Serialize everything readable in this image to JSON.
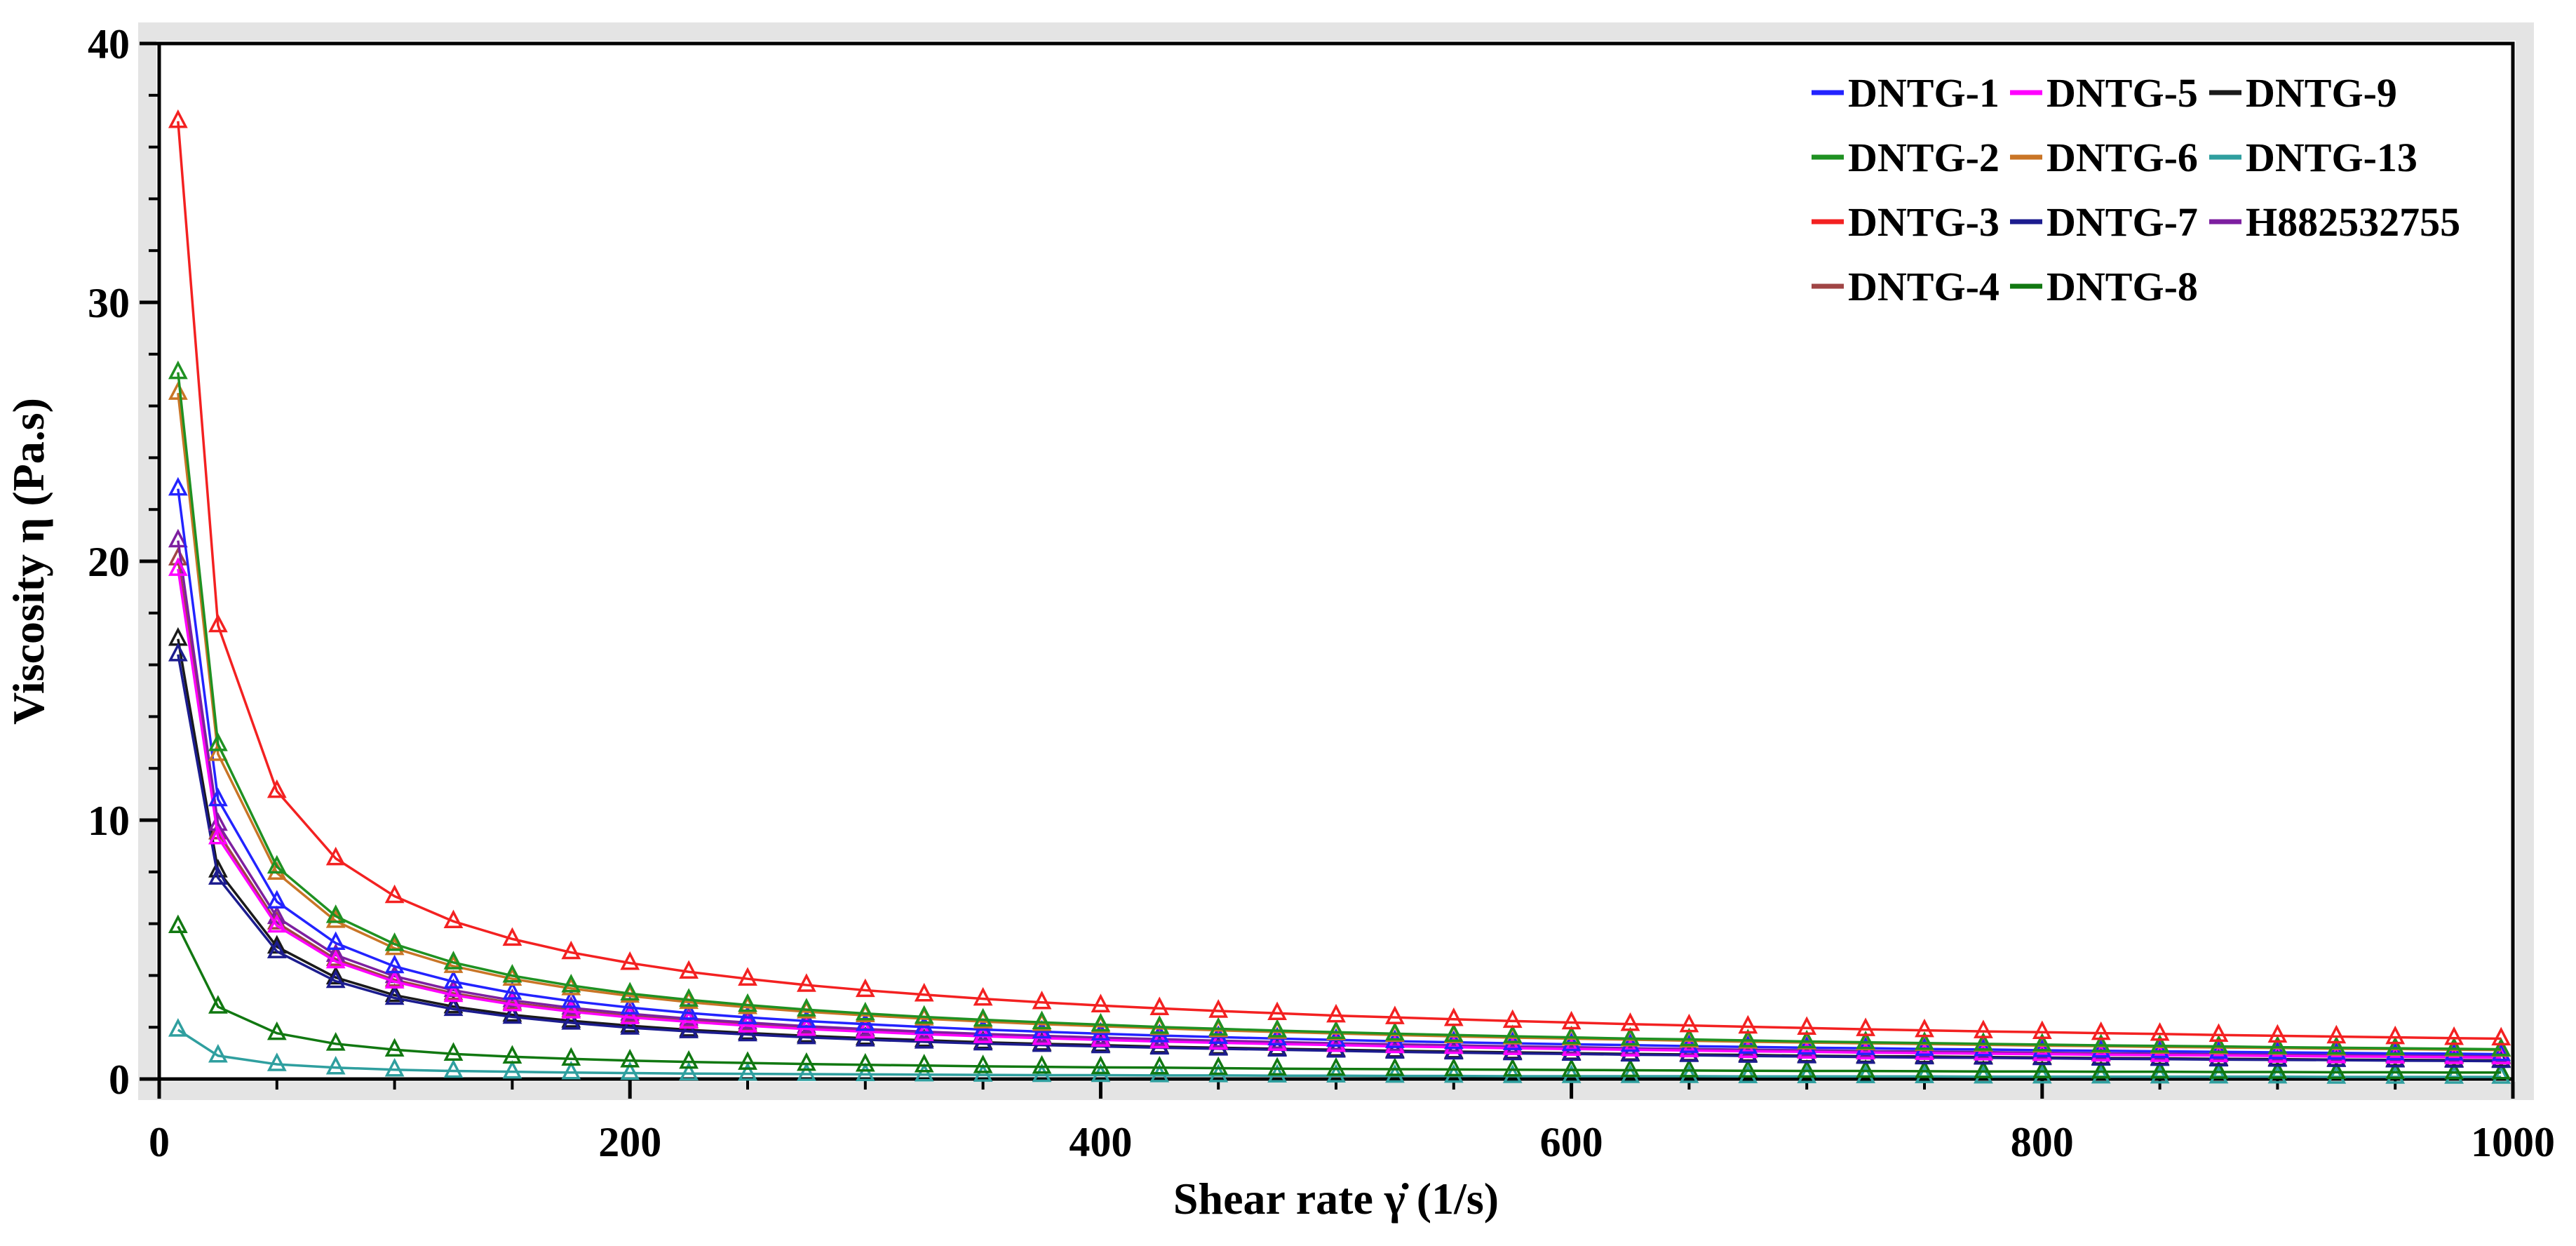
{
  "figure": {
    "background": "#ffffff",
    "frame_color": "#000000",
    "frame_halo_color": "#e4e4e4"
  },
  "chart_data": {
    "type": "line",
    "title": "",
    "xlabel": "Shear rate γ̇  (1/s)",
    "ylabel": "Viscosity η (Pa.s)",
    "xlim": [
      0,
      1000
    ],
    "ylim": [
      0,
      40
    ],
    "x_major_ticks": [
      0,
      200,
      400,
      600,
      800,
      1000
    ],
    "x_minor_tick_step": 50,
    "y_major_ticks": [
      0,
      10,
      20,
      30,
      40
    ],
    "y_minor_tick_step": 2,
    "grid": false,
    "marker": "open-triangle-up",
    "legend": {
      "position": "top-right",
      "columns": [
        [
          "DNTG-1",
          "DNTG-2",
          "DNTG-3",
          "DNTG-4"
        ],
        [
          "DNTG-5",
          "DNTG-6",
          "DNTG-7",
          "DNTG-8"
        ],
        [
          "DNTG-9",
          "DNTG-13",
          "H882532755"
        ]
      ]
    },
    "x": [
      8,
      25,
      50,
      75,
      100,
      125,
      150,
      175,
      200,
      225,
      250,
      275,
      300,
      325,
      350,
      375,
      400,
      425,
      450,
      475,
      500,
      525,
      550,
      575,
      600,
      625,
      650,
      675,
      700,
      725,
      750,
      775,
      800,
      825,
      850,
      875,
      900,
      925,
      950,
      975,
      995
    ],
    "series": [
      {
        "name": "DNTG-13",
        "color": "#2f9f9f",
        "values": [
          1.9,
          0.9,
          0.57,
          0.44,
          0.36,
          0.31,
          0.28,
          0.25,
          0.23,
          0.21,
          0.2,
          0.19,
          0.18,
          0.17,
          0.16,
          0.15,
          0.15,
          0.14,
          0.14,
          0.13,
          0.13,
          0.12,
          0.12,
          0.11,
          0.11,
          0.11,
          0.11,
          0.1,
          0.1,
          0.1,
          0.1,
          0.09,
          0.09,
          0.09,
          0.09,
          0.09,
          0.09,
          0.08,
          0.08,
          0.08,
          0.08
        ]
      },
      {
        "name": "DNTG-8",
        "color": "#117811",
        "values": [
          5.9,
          2.79,
          1.77,
          1.36,
          1.13,
          0.97,
          0.86,
          0.78,
          0.71,
          0.66,
          0.62,
          0.58,
          0.55,
          0.52,
          0.49,
          0.47,
          0.45,
          0.44,
          0.42,
          0.4,
          0.39,
          0.38,
          0.37,
          0.36,
          0.35,
          0.34,
          0.33,
          0.32,
          0.31,
          0.31,
          0.3,
          0.29,
          0.29,
          0.28,
          0.28,
          0.27,
          0.27,
          0.26,
          0.26,
          0.25,
          0.25
        ]
      },
      {
        "name": "DNTG-9",
        "color": "#1a1a1a",
        "values": [
          17,
          8.05,
          5.11,
          3.92,
          3.24,
          2.8,
          2.48,
          2.25,
          2.06,
          1.9,
          1.78,
          1.67,
          1.58,
          1.5,
          1.42,
          1.36,
          1.31,
          1.25,
          1.21,
          1.17,
          1.13,
          1.09,
          1.06,
          1.03,
          1,
          0.97,
          0.95,
          0.93,
          0.9,
          0.88,
          0.87,
          0.85,
          0.83,
          0.81,
          0.8,
          0.78,
          0.77,
          0.75,
          0.74,
          0.73,
          0.72
        ]
      },
      {
        "name": "DNTG-7",
        "color": "#1c1c8f",
        "values": [
          16.4,
          7.77,
          4.93,
          3.78,
          3.13,
          2.7,
          2.4,
          2.17,
          1.98,
          1.84,
          1.72,
          1.61,
          1.52,
          1.44,
          1.37,
          1.31,
          1.26,
          1.21,
          1.17,
          1.13,
          1.09,
          1.05,
          1.02,
          0.99,
          0.97,
          0.94,
          0.92,
          0.89,
          0.87,
          0.85,
          0.83,
          0.82,
          0.8,
          0.78,
          0.77,
          0.75,
          0.74,
          0.73,
          0.71,
          0.7,
          0.69
        ]
      },
      {
        "name": "DNTG-4",
        "color": "#a04545",
        "values": [
          20.1,
          9.52,
          6.04,
          4.63,
          3.83,
          3.31,
          2.94,
          2.66,
          2.43,
          2.25,
          2.1,
          1.97,
          1.87,
          1.77,
          1.68,
          1.61,
          1.54,
          1.48,
          1.43,
          1.38,
          1.33,
          1.29,
          1.25,
          1.22,
          1.18,
          1.15,
          1.12,
          1.1,
          1.07,
          1.05,
          1.02,
          1,
          0.98,
          0.96,
          0.94,
          0.92,
          0.91,
          0.89,
          0.88,
          0.86,
          0.85
        ]
      },
      {
        "name": "H882532755",
        "color": "#7d1fa0",
        "values": [
          20.8,
          9.85,
          6.25,
          4.79,
          3.97,
          3.43,
          3.04,
          2.75,
          2.52,
          2.33,
          2.18,
          2.04,
          1.93,
          1.83,
          1.74,
          1.67,
          1.6,
          1.54,
          1.48,
          1.43,
          1.38,
          1.34,
          1.3,
          1.26,
          1.23,
          1.19,
          1.16,
          1.13,
          1.11,
          1.08,
          1.06,
          1.04,
          1.01,
          0.99,
          0.98,
          0.96,
          0.94,
          0.92,
          0.91,
          0.89,
          0.88
        ]
      },
      {
        "name": "DNTG-5",
        "color": "#ff00ff",
        "values": [
          19.7,
          9.33,
          5.92,
          4.54,
          3.76,
          3.24,
          2.88,
          2.6,
          2.38,
          2.21,
          2.06,
          1.93,
          1.83,
          1.73,
          1.65,
          1.58,
          1.51,
          1.45,
          1.4,
          1.35,
          1.31,
          1.26,
          1.23,
          1.19,
          1.16,
          1.13,
          1.1,
          1.07,
          1.05,
          1.02,
          1,
          0.98,
          0.96,
          0.94,
          0.92,
          0.91,
          0.89,
          0.87,
          0.86,
          0.84,
          0.83
        ]
      },
      {
        "name": "DNTG-1",
        "color": "#2323ff",
        "values": [
          22.8,
          10.8,
          6.85,
          5.25,
          4.35,
          3.76,
          3.33,
          3.01,
          2.76,
          2.55,
          2.38,
          2.24,
          2.12,
          2.01,
          1.91,
          1.83,
          1.75,
          1.68,
          1.62,
          1.56,
          1.51,
          1.46,
          1.42,
          1.38,
          1.34,
          1.31,
          1.27,
          1.24,
          1.21,
          1.19,
          1.16,
          1.14,
          1.11,
          1.09,
          1.07,
          1.05,
          1.03,
          1.01,
          0.99,
          0.98,
          0.96
        ]
      },
      {
        "name": "DNTG-6",
        "color": "#c97526",
        "values": [
          26.5,
          12.55,
          7.96,
          6.1,
          5.05,
          4.36,
          3.87,
          3.5,
          3.21,
          2.97,
          2.77,
          2.6,
          2.46,
          2.33,
          2.22,
          2.12,
          2.04,
          1.96,
          1.88,
          1.82,
          1.76,
          1.7,
          1.65,
          1.6,
          1.56,
          1.52,
          1.48,
          1.44,
          1.41,
          1.38,
          1.35,
          1.32,
          1.29,
          1.27,
          1.24,
          1.22,
          1.2,
          1.17,
          1.16,
          1.13,
          1.12
        ]
      },
      {
        "name": "DNTG-2",
        "color": "#1f9122",
        "values": [
          27.3,
          12.93,
          8.2,
          6.29,
          5.21,
          4.5,
          3.99,
          3.61,
          3.3,
          3.06,
          2.86,
          2.68,
          2.53,
          2.4,
          2.29,
          2.19,
          2.1,
          2.01,
          1.94,
          1.87,
          1.81,
          1.75,
          1.7,
          1.65,
          1.61,
          1.56,
          1.53,
          1.49,
          1.45,
          1.42,
          1.39,
          1.36,
          1.33,
          1.3,
          1.28,
          1.26,
          1.23,
          1.21,
          1.19,
          1.17,
          1.15
        ]
      },
      {
        "name": "DNTG-3",
        "color": "#f32121",
        "values": [
          37,
          17.52,
          11.12,
          8.52,
          7.06,
          6.09,
          5.41,
          4.89,
          4.48,
          4.14,
          3.87,
          3.63,
          3.43,
          3.26,
          3.1,
          2.96,
          2.84,
          2.73,
          2.63,
          2.54,
          2.45,
          2.38,
          2.31,
          2.24,
          2.18,
          2.12,
          2.07,
          2.02,
          1.97,
          1.92,
          1.88,
          1.84,
          1.81,
          1.77,
          1.74,
          1.7,
          1.67,
          1.64,
          1.61,
          1.58,
          1.56
        ]
      }
    ]
  }
}
